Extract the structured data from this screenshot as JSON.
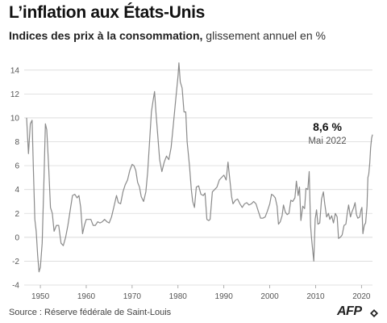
{
  "title": "L’inflation aux États-Unis",
  "subtitle_bold": "Indices des prix à la consommation,",
  "subtitle_rest": " glissement annuel en %",
  "source": "Source : Réserve fédérale de Saint-Louis",
  "logo": "AFP",
  "colors": {
    "line": "#8a8a8a",
    "grid": "#d9d9d9",
    "text": "#555555"
  },
  "chart_data": {
    "type": "line",
    "title": "L’inflation aux États-Unis",
    "subtitle": "Indices des prix à la consommation, glissement annuel en %",
    "xlabel": "",
    "ylabel": "",
    "xlim": [
      1947,
      2022.4
    ],
    "ylim": [
      -4,
      15
    ],
    "xticks": [
      1950,
      1960,
      1970,
      1980,
      1990,
      2000,
      2010,
      2020
    ],
    "yticks": [
      -4,
      -2,
      0,
      2,
      4,
      6,
      8,
      10,
      12,
      14
    ],
    "grid": "horizontal",
    "annotation": {
      "value_label": "8,6 %",
      "date_label": "Mai 2022",
      "x": 2022.4,
      "y": 8.6
    },
    "series": [
      {
        "values": [
          [
            1947.0,
            10.0
          ],
          [
            1947.4,
            7.0
          ],
          [
            1947.8,
            9.5
          ],
          [
            1948.2,
            9.8
          ],
          [
            1948.5,
            5.5
          ],
          [
            1948.8,
            1.5
          ],
          [
            1949.1,
            0.5
          ],
          [
            1949.4,
            -1.5
          ],
          [
            1949.7,
            -2.9
          ],
          [
            1950.0,
            -2.5
          ],
          [
            1950.4,
            -0.5
          ],
          [
            1950.8,
            5.0
          ],
          [
            1951.1,
            9.5
          ],
          [
            1951.4,
            9.0
          ],
          [
            1951.8,
            6.0
          ],
          [
            1952.2,
            2.5
          ],
          [
            1952.6,
            2.0
          ],
          [
            1953.0,
            0.5
          ],
          [
            1953.5,
            1.0
          ],
          [
            1954.0,
            1.0
          ],
          [
            1954.5,
            -0.5
          ],
          [
            1955.0,
            -0.7
          ],
          [
            1955.5,
            0.0
          ],
          [
            1956.0,
            1.0
          ],
          [
            1956.6,
            2.5
          ],
          [
            1957.0,
            3.5
          ],
          [
            1957.5,
            3.6
          ],
          [
            1958.0,
            3.3
          ],
          [
            1958.4,
            3.5
          ],
          [
            1958.8,
            2.5
          ],
          [
            1959.2,
            0.3
          ],
          [
            1959.6,
            1.0
          ],
          [
            1960.0,
            1.5
          ],
          [
            1960.5,
            1.5
          ],
          [
            1961.0,
            1.5
          ],
          [
            1961.5,
            1.0
          ],
          [
            1962.0,
            1.0
          ],
          [
            1962.5,
            1.3
          ],
          [
            1963.0,
            1.2
          ],
          [
            1963.5,
            1.3
          ],
          [
            1964.0,
            1.5
          ],
          [
            1964.5,
            1.3
          ],
          [
            1965.0,
            1.2
          ],
          [
            1965.5,
            1.7
          ],
          [
            1966.0,
            2.5
          ],
          [
            1966.6,
            3.5
          ],
          [
            1967.0,
            2.9
          ],
          [
            1967.5,
            2.8
          ],
          [
            1968.0,
            3.8
          ],
          [
            1968.5,
            4.4
          ],
          [
            1969.0,
            4.8
          ],
          [
            1969.5,
            5.6
          ],
          [
            1970.0,
            6.1
          ],
          [
            1970.4,
            6.0
          ],
          [
            1970.8,
            5.6
          ],
          [
            1971.2,
            4.6
          ],
          [
            1971.6,
            4.2
          ],
          [
            1972.0,
            3.4
          ],
          [
            1972.5,
            3.0
          ],
          [
            1973.0,
            3.8
          ],
          [
            1973.4,
            5.5
          ],
          [
            1973.8,
            8.0
          ],
          [
            1974.2,
            10.5
          ],
          [
            1974.6,
            11.5
          ],
          [
            1974.9,
            12.2
          ],
          [
            1975.2,
            10.5
          ],
          [
            1975.6,
            8.5
          ],
          [
            1976.0,
            6.5
          ],
          [
            1976.5,
            5.5
          ],
          [
            1977.0,
            6.3
          ],
          [
            1977.5,
            6.8
          ],
          [
            1978.0,
            6.5
          ],
          [
            1978.5,
            7.5
          ],
          [
            1979.0,
            9.5
          ],
          [
            1979.5,
            11.5
          ],
          [
            1980.0,
            13.5
          ],
          [
            1980.2,
            14.6
          ],
          [
            1980.5,
            13.0
          ],
          [
            1980.9,
            12.5
          ],
          [
            1981.3,
            10.5
          ],
          [
            1981.7,
            10.5
          ],
          [
            1982.0,
            8.0
          ],
          [
            1982.5,
            6.0
          ],
          [
            1982.9,
            4.0
          ],
          [
            1983.2,
            3.0
          ],
          [
            1983.6,
            2.5
          ],
          [
            1984.0,
            4.2
          ],
          [
            1984.5,
            4.3
          ],
          [
            1985.0,
            3.6
          ],
          [
            1985.5,
            3.5
          ],
          [
            1985.9,
            3.7
          ],
          [
            1986.3,
            1.5
          ],
          [
            1986.7,
            1.4
          ],
          [
            1987.0,
            1.5
          ],
          [
            1987.5,
            3.8
          ],
          [
            1988.0,
            4.0
          ],
          [
            1988.5,
            4.2
          ],
          [
            1989.0,
            4.8
          ],
          [
            1989.5,
            5.0
          ],
          [
            1990.0,
            5.2
          ],
          [
            1990.5,
            4.8
          ],
          [
            1990.9,
            6.3
          ],
          [
            1991.3,
            4.8
          ],
          [
            1991.7,
            3.4
          ],
          [
            1992.0,
            2.8
          ],
          [
            1992.5,
            3.1
          ],
          [
            1993.0,
            3.2
          ],
          [
            1993.5,
            2.8
          ],
          [
            1994.0,
            2.5
          ],
          [
            1994.5,
            2.8
          ],
          [
            1995.0,
            2.9
          ],
          [
            1995.5,
            2.7
          ],
          [
            1996.0,
            2.8
          ],
          [
            1996.5,
            3.0
          ],
          [
            1997.0,
            2.8
          ],
          [
            1997.5,
            2.2
          ],
          [
            1998.0,
            1.6
          ],
          [
            1998.5,
            1.6
          ],
          [
            1999.0,
            1.7
          ],
          [
            1999.5,
            2.2
          ],
          [
            2000.0,
            2.8
          ],
          [
            2000.4,
            3.6
          ],
          [
            2000.8,
            3.5
          ],
          [
            2001.2,
            3.3
          ],
          [
            2001.6,
            2.6
          ],
          [
            2001.9,
            1.1
          ],
          [
            2002.3,
            1.3
          ],
          [
            2002.7,
            1.8
          ],
          [
            2003.0,
            2.7
          ],
          [
            2003.4,
            2.1
          ],
          [
            2003.8,
            1.9
          ],
          [
            2004.2,
            2.0
          ],
          [
            2004.6,
            3.1
          ],
          [
            2005.0,
            3.0
          ],
          [
            2005.5,
            3.3
          ],
          [
            2005.8,
            4.7
          ],
          [
            2006.2,
            3.5
          ],
          [
            2006.5,
            4.2
          ],
          [
            2006.8,
            1.4
          ],
          [
            2007.2,
            2.6
          ],
          [
            2007.6,
            2.4
          ],
          [
            2007.9,
            4.1
          ],
          [
            2008.3,
            4.0
          ],
          [
            2008.6,
            5.5
          ],
          [
            2008.9,
            1.0
          ],
          [
            2009.1,
            0.0
          ],
          [
            2009.4,
            -1.2
          ],
          [
            2009.6,
            -2.0
          ],
          [
            2009.9,
            1.5
          ],
          [
            2010.2,
            2.3
          ],
          [
            2010.5,
            1.1
          ],
          [
            2010.9,
            1.2
          ],
          [
            2011.3,
            3.2
          ],
          [
            2011.7,
            3.8
          ],
          [
            2012.0,
            2.8
          ],
          [
            2012.4,
            1.7
          ],
          [
            2012.8,
            2.0
          ],
          [
            2013.1,
            1.5
          ],
          [
            2013.5,
            1.8
          ],
          [
            2013.9,
            1.2
          ],
          [
            2014.3,
            2.0
          ],
          [
            2014.7,
            1.7
          ],
          [
            2015.0,
            -0.1
          ],
          [
            2015.4,
            0.0
          ],
          [
            2015.8,
            0.2
          ],
          [
            2016.2,
            1.0
          ],
          [
            2016.6,
            1.1
          ],
          [
            2016.9,
            2.0
          ],
          [
            2017.2,
            2.7
          ],
          [
            2017.6,
            1.7
          ],
          [
            2017.9,
            2.1
          ],
          [
            2018.3,
            2.5
          ],
          [
            2018.6,
            2.9
          ],
          [
            2018.9,
            1.9
          ],
          [
            2019.2,
            1.6
          ],
          [
            2019.6,
            1.7
          ],
          [
            2019.9,
            2.3
          ],
          [
            2020.1,
            2.5
          ],
          [
            2020.3,
            0.3
          ],
          [
            2020.6,
            1.0
          ],
          [
            2020.9,
            1.2
          ],
          [
            2021.2,
            2.6
          ],
          [
            2021.4,
            5.0
          ],
          [
            2021.6,
            5.3
          ],
          [
            2021.8,
            6.2
          ],
          [
            2022.0,
            7.5
          ],
          [
            2022.2,
            8.3
          ],
          [
            2022.4,
            8.6
          ]
        ]
      }
    ]
  }
}
